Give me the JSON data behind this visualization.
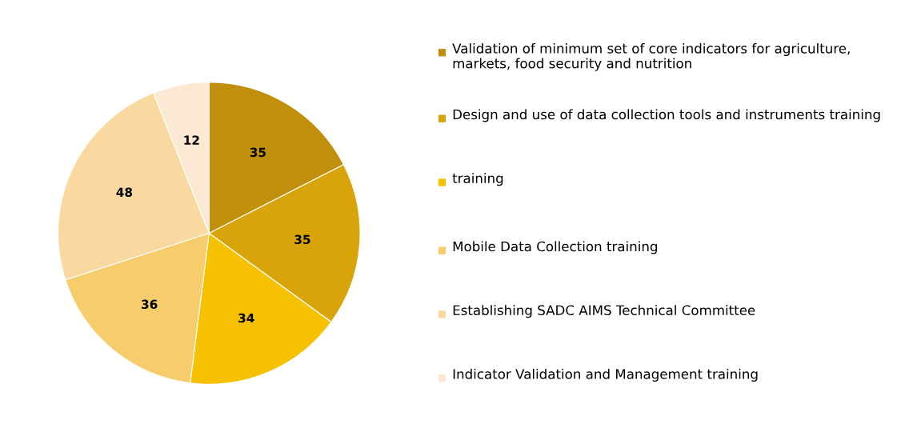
{
  "chart_data": {
    "type": "pie",
    "categories": [
      "Validation of minimum set of core indicators for agriculture, markets, food security and nutrition",
      "Design and use of data collection tools and instruments training",
      "training",
      "Mobile Data Collection training",
      "Establishing SADC AIMS Technical Committee",
      "Indicator Validation and Management training"
    ],
    "values": [
      35,
      35,
      34,
      36,
      48,
      12
    ],
    "colors": [
      "#c0900c",
      "#d9a40a",
      "#f5c100",
      "#f7cc6c",
      "#f9d9a0",
      "#fce9d3"
    ],
    "data_labels": true,
    "legend": "right"
  }
}
